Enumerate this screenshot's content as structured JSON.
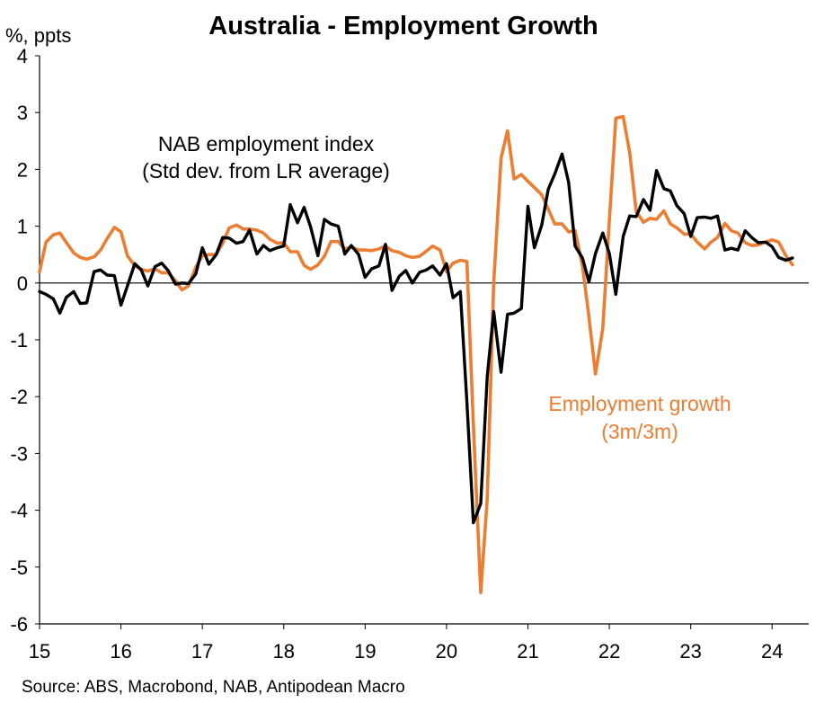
{
  "chart_data": {
    "type": "line",
    "title": "Australia - Employment Growth",
    "ylabel": "%, ppts",
    "source": "Source: ABS, Macrobond, NAB, Antipodean Macro",
    "ylim": [
      -6,
      4
    ],
    "yticks": [
      4,
      3,
      2,
      1,
      0,
      -1,
      -2,
      -3,
      -4,
      -5,
      -6
    ],
    "xlim": [
      15,
      24.45
    ],
    "xticks": [
      15,
      16,
      17,
      18,
      19,
      20,
      21,
      22,
      23,
      24
    ],
    "xtick_labels": [
      "15",
      "16",
      "17",
      "18",
      "19",
      "20",
      "21",
      "22",
      "23",
      "24"
    ],
    "grid": false,
    "annotations": [
      {
        "lines": [
          "NAB employment index",
          "(Std dev. from LR average)"
        ],
        "series": "NAB employment index"
      },
      {
        "lines": [
          "Employment growth",
          "(3m/3m)"
        ],
        "series": "Employment growth (3m/3m)"
      }
    ],
    "series": [
      {
        "name": "NAB employment index",
        "color": "#000000",
        "points": [
          [
            15.0,
            -0.15
          ],
          [
            15.08,
            -0.2
          ],
          [
            15.17,
            -0.28
          ],
          [
            15.25,
            -0.53
          ],
          [
            15.33,
            -0.25
          ],
          [
            15.42,
            -0.15
          ],
          [
            15.5,
            -0.36
          ],
          [
            15.58,
            -0.35
          ],
          [
            15.67,
            0.2
          ],
          [
            15.75,
            0.23
          ],
          [
            15.83,
            0.14
          ],
          [
            15.92,
            0.13
          ],
          [
            16.0,
            -0.39
          ],
          [
            16.08,
            -0.05
          ],
          [
            16.17,
            0.34
          ],
          [
            16.25,
            0.23
          ],
          [
            16.33,
            -0.05
          ],
          [
            16.42,
            0.29
          ],
          [
            16.5,
            0.35
          ],
          [
            16.58,
            0.22
          ],
          [
            16.67,
            -0.02
          ],
          [
            16.75,
            0.0
          ],
          [
            16.83,
            -0.01
          ],
          [
            16.92,
            0.16
          ],
          [
            17.0,
            0.62
          ],
          [
            17.08,
            0.33
          ],
          [
            17.17,
            0.5
          ],
          [
            17.25,
            0.8
          ],
          [
            17.33,
            0.79
          ],
          [
            17.42,
            0.7
          ],
          [
            17.5,
            0.73
          ],
          [
            17.58,
            0.93
          ],
          [
            17.67,
            0.51
          ],
          [
            17.75,
            0.66
          ],
          [
            17.83,
            0.57
          ],
          [
            17.92,
            0.62
          ],
          [
            18.0,
            0.65
          ],
          [
            18.08,
            1.38
          ],
          [
            18.17,
            1.06
          ],
          [
            18.25,
            1.33
          ],
          [
            18.33,
            0.99
          ],
          [
            18.42,
            0.48
          ],
          [
            18.5,
            1.12
          ],
          [
            18.58,
            1.04
          ],
          [
            18.67,
            1.0
          ],
          [
            18.75,
            0.51
          ],
          [
            18.83,
            0.66
          ],
          [
            18.92,
            0.5
          ],
          [
            19.0,
            0.1
          ],
          [
            19.08,
            0.25
          ],
          [
            19.17,
            0.3
          ],
          [
            19.25,
            0.68
          ],
          [
            19.33,
            -0.13
          ],
          [
            19.42,
            0.12
          ],
          [
            19.5,
            0.22
          ],
          [
            19.58,
            0.0
          ],
          [
            19.67,
            0.19
          ],
          [
            19.75,
            0.23
          ],
          [
            19.83,
            0.3
          ],
          [
            19.92,
            0.14
          ],
          [
            20.0,
            0.34
          ],
          [
            20.08,
            -0.26
          ],
          [
            20.17,
            -0.15
          ],
          [
            20.25,
            -2.1
          ],
          [
            20.33,
            -4.22
          ],
          [
            20.42,
            -3.88
          ],
          [
            20.5,
            -1.65
          ],
          [
            20.58,
            -0.5
          ],
          [
            20.67,
            -1.57
          ],
          [
            20.75,
            -0.55
          ],
          [
            20.83,
            -0.53
          ],
          [
            20.92,
            -0.45
          ],
          [
            21.0,
            1.35
          ],
          [
            21.08,
            0.62
          ],
          [
            21.17,
            1.02
          ],
          [
            21.25,
            1.65
          ],
          [
            21.33,
            1.92
          ],
          [
            21.42,
            2.27
          ],
          [
            21.5,
            1.77
          ],
          [
            21.58,
            0.65
          ],
          [
            21.67,
            0.44
          ],
          [
            21.75,
            0.02
          ],
          [
            21.83,
            0.52
          ],
          [
            21.92,
            0.88
          ],
          [
            22.0,
            0.52
          ],
          [
            22.08,
            -0.2
          ],
          [
            22.17,
            0.82
          ],
          [
            22.25,
            1.18
          ],
          [
            22.33,
            1.17
          ],
          [
            22.42,
            1.47
          ],
          [
            22.5,
            1.28
          ],
          [
            22.58,
            1.98
          ],
          [
            22.67,
            1.66
          ],
          [
            22.75,
            1.62
          ],
          [
            22.83,
            1.36
          ],
          [
            22.92,
            1.22
          ],
          [
            23.0,
            0.82
          ],
          [
            23.08,
            1.15
          ],
          [
            23.17,
            1.16
          ],
          [
            23.25,
            1.14
          ],
          [
            23.33,
            1.18
          ],
          [
            23.42,
            0.58
          ],
          [
            23.5,
            0.61
          ],
          [
            23.58,
            0.58
          ],
          [
            23.67,
            0.92
          ],
          [
            23.75,
            0.8
          ],
          [
            23.83,
            0.71
          ],
          [
            23.92,
            0.72
          ],
          [
            24.0,
            0.64
          ],
          [
            24.08,
            0.45
          ],
          [
            24.17,
            0.4
          ],
          [
            24.25,
            0.44
          ]
        ]
      },
      {
        "name": "Employment growth (3m/3m)",
        "color": "#ed7d31",
        "points": [
          [
            15.0,
            0.2
          ],
          [
            15.08,
            0.72
          ],
          [
            15.17,
            0.85
          ],
          [
            15.25,
            0.88
          ],
          [
            15.33,
            0.71
          ],
          [
            15.42,
            0.53
          ],
          [
            15.5,
            0.45
          ],
          [
            15.58,
            0.42
          ],
          [
            15.67,
            0.46
          ],
          [
            15.75,
            0.58
          ],
          [
            15.83,
            0.78
          ],
          [
            15.92,
            0.98
          ],
          [
            16.0,
            0.9
          ],
          [
            16.08,
            0.48
          ],
          [
            16.17,
            0.3
          ],
          [
            16.25,
            0.24
          ],
          [
            16.33,
            0.21
          ],
          [
            16.42,
            0.25
          ],
          [
            16.5,
            0.18
          ],
          [
            16.58,
            0.18
          ],
          [
            16.67,
            0.04
          ],
          [
            16.75,
            -0.12
          ],
          [
            16.83,
            -0.05
          ],
          [
            16.92,
            0.28
          ],
          [
            17.0,
            0.48
          ],
          [
            17.08,
            0.5
          ],
          [
            17.17,
            0.5
          ],
          [
            17.25,
            0.7
          ],
          [
            17.33,
            0.97
          ],
          [
            17.42,
            1.02
          ],
          [
            17.5,
            0.95
          ],
          [
            17.58,
            0.95
          ],
          [
            17.67,
            0.93
          ],
          [
            17.75,
            0.88
          ],
          [
            17.83,
            0.77
          ],
          [
            17.92,
            0.7
          ],
          [
            18.0,
            0.71
          ],
          [
            18.08,
            0.55
          ],
          [
            18.17,
            0.55
          ],
          [
            18.25,
            0.31
          ],
          [
            18.33,
            0.24
          ],
          [
            18.42,
            0.32
          ],
          [
            18.5,
            0.47
          ],
          [
            18.58,
            0.73
          ],
          [
            18.67,
            0.73
          ],
          [
            18.75,
            0.6
          ],
          [
            18.83,
            0.63
          ],
          [
            18.92,
            0.58
          ],
          [
            19.0,
            0.58
          ],
          [
            19.08,
            0.57
          ],
          [
            19.17,
            0.6
          ],
          [
            19.25,
            0.65
          ],
          [
            19.33,
            0.57
          ],
          [
            19.42,
            0.54
          ],
          [
            19.5,
            0.48
          ],
          [
            19.58,
            0.45
          ],
          [
            19.67,
            0.47
          ],
          [
            19.75,
            0.56
          ],
          [
            19.83,
            0.65
          ],
          [
            19.92,
            0.58
          ],
          [
            20.0,
            0.2
          ],
          [
            20.08,
            0.35
          ],
          [
            20.17,
            0.4
          ],
          [
            20.25,
            0.38
          ],
          [
            20.33,
            -2.5
          ],
          [
            20.42,
            -5.45
          ],
          [
            20.5,
            -3.8
          ],
          [
            20.58,
            0.0
          ],
          [
            20.67,
            2.2
          ],
          [
            20.75,
            2.68
          ],
          [
            20.83,
            1.83
          ],
          [
            20.92,
            1.91
          ],
          [
            21.0,
            1.79
          ],
          [
            21.08,
            1.68
          ],
          [
            21.17,
            1.55
          ],
          [
            21.25,
            1.3
          ],
          [
            21.33,
            1.04
          ],
          [
            21.42,
            1.04
          ],
          [
            21.5,
            0.9
          ],
          [
            21.58,
            0.92
          ],
          [
            21.67,
            0.3
          ],
          [
            21.75,
            -0.6
          ],
          [
            21.83,
            -1.6
          ],
          [
            21.92,
            -0.8
          ],
          [
            22.0,
            1.1
          ],
          [
            22.08,
            2.9
          ],
          [
            22.17,
            2.93
          ],
          [
            22.25,
            2.3
          ],
          [
            22.33,
            1.26
          ],
          [
            22.42,
            1.07
          ],
          [
            22.5,
            1.14
          ],
          [
            22.58,
            1.12
          ],
          [
            22.67,
            1.27
          ],
          [
            22.75,
            1.04
          ],
          [
            22.83,
            0.97
          ],
          [
            22.92,
            0.86
          ],
          [
            23.0,
            0.86
          ],
          [
            23.08,
            0.72
          ],
          [
            23.17,
            0.6
          ],
          [
            23.25,
            0.72
          ],
          [
            23.33,
            0.8
          ],
          [
            23.42,
            1.05
          ],
          [
            23.5,
            0.92
          ],
          [
            23.58,
            0.88
          ],
          [
            23.67,
            0.71
          ],
          [
            23.75,
            0.66
          ],
          [
            23.83,
            0.67
          ],
          [
            23.92,
            0.72
          ],
          [
            24.0,
            0.76
          ],
          [
            24.08,
            0.72
          ],
          [
            24.17,
            0.48
          ],
          [
            24.25,
            0.32
          ]
        ]
      }
    ]
  }
}
